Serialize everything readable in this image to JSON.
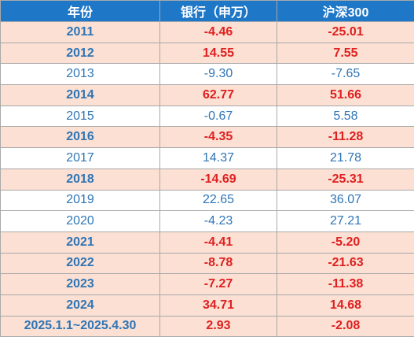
{
  "table": {
    "headers": [
      "年份",
      "银行（申万）",
      "沪深300"
    ],
    "rows": [
      {
        "year": "2011",
        "bank": "-4.46",
        "hs300": "-25.01",
        "highlight": true
      },
      {
        "year": "2012",
        "bank": "14.55",
        "hs300": "7.55",
        "highlight": true
      },
      {
        "year": "2013",
        "bank": "-9.30",
        "hs300": "-7.65",
        "highlight": false
      },
      {
        "year": "2014",
        "bank": "62.77",
        "hs300": "51.66",
        "highlight": true
      },
      {
        "year": "2015",
        "bank": "-0.67",
        "hs300": "5.58",
        "highlight": false
      },
      {
        "year": "2016",
        "bank": "-4.35",
        "hs300": "-11.28",
        "highlight": true
      },
      {
        "year": "2017",
        "bank": "14.37",
        "hs300": "21.78",
        "highlight": false
      },
      {
        "year": "2018",
        "bank": "-14.69",
        "hs300": "-25.31",
        "highlight": true
      },
      {
        "year": "2019",
        "bank": "22.65",
        "hs300": "36.07",
        "highlight": false
      },
      {
        "year": "2020",
        "bank": "-4.23",
        "hs300": "27.21",
        "highlight": false
      },
      {
        "year": "2021",
        "bank": "-4.41",
        "hs300": "-5.20",
        "highlight": true
      },
      {
        "year": "2022",
        "bank": "-8.78",
        "hs300": "-21.63",
        "highlight": true
      },
      {
        "year": "2023",
        "bank": "-7.27",
        "hs300": "-11.38",
        "highlight": true
      },
      {
        "year": "2024",
        "bank": "34.71",
        "hs300": "14.68",
        "highlight": true
      },
      {
        "year": "2025.1.1~2025.4.30",
        "bank": "2.93",
        "hs300": "-2.08",
        "highlight": true
      }
    ]
  },
  "colors": {
    "header_bg": "#1f77c8",
    "highlight_bg": "#fbe0d3",
    "red_text": "#e02020",
    "blue_text": "#2e75b6"
  }
}
